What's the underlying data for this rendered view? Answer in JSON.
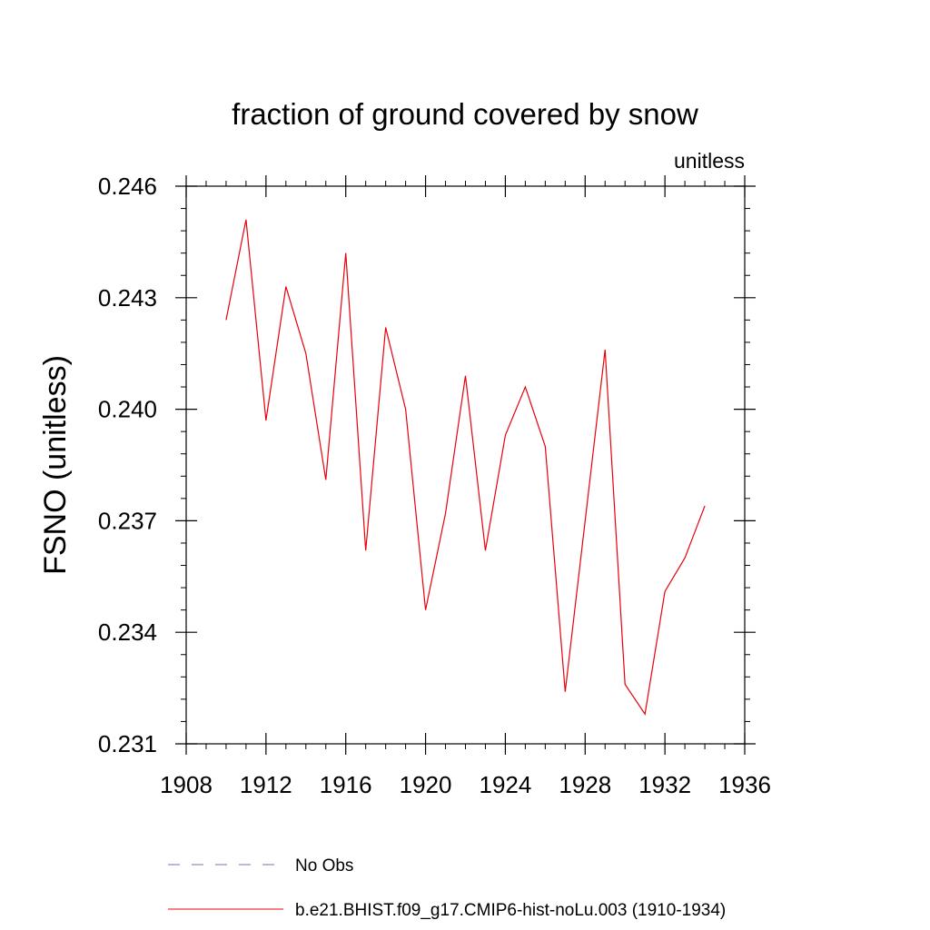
{
  "chart_data": {
    "type": "line",
    "title": "fraction of ground covered by snow",
    "units_label": "unitless",
    "ylabel": "FSNO  (unitless)",
    "xlabel": "",
    "xlim": [
      1908,
      1936
    ],
    "ylim": [
      0.231,
      0.246
    ],
    "x_ticks": [
      1908,
      1912,
      1916,
      1920,
      1924,
      1928,
      1932,
      1936
    ],
    "x_tick_labels": [
      "1908",
      "1912",
      "1916",
      "1920",
      "1924",
      "1928",
      "1932",
      "1936"
    ],
    "y_ticks": [
      0.231,
      0.234,
      0.237,
      0.24,
      0.243,
      0.246
    ],
    "y_tick_labels": [
      "0.231",
      "0.234",
      "0.237",
      "0.240",
      "0.243",
      "0.246"
    ],
    "grid": false,
    "series": [
      {
        "name": "b.e21.BHIST.f09_g17.CMIP6-hist-noLu.003 (1910-1934)",
        "color": "#e8000b",
        "style": "solid",
        "x": [
          1910,
          1911,
          1912,
          1913,
          1914,
          1915,
          1916,
          1917,
          1918,
          1919,
          1920,
          1921,
          1922,
          1923,
          1924,
          1925,
          1926,
          1927,
          1928,
          1929,
          1930,
          1931,
          1932,
          1933,
          1934
        ],
        "y": [
          0.2424,
          0.2451,
          0.2397,
          0.2433,
          0.2415,
          0.2381,
          0.2442,
          0.2362,
          0.2422,
          0.24,
          0.2346,
          0.2372,
          0.2409,
          0.2362,
          0.2393,
          0.2406,
          0.239,
          0.2324,
          0.237,
          0.2416,
          0.2326,
          0.2318,
          0.2351,
          0.236,
          0.2374
        ]
      }
    ],
    "legend": {
      "placement": "bottom",
      "entries": [
        {
          "label": "No Obs",
          "color": "#7a6fb0",
          "style": "dashed"
        },
        {
          "label": "b.e21.BHIST.f09_g17.CMIP6-hist-noLu.003 (1910-1934)",
          "color": "#e8000b",
          "style": "solid"
        }
      ]
    }
  }
}
